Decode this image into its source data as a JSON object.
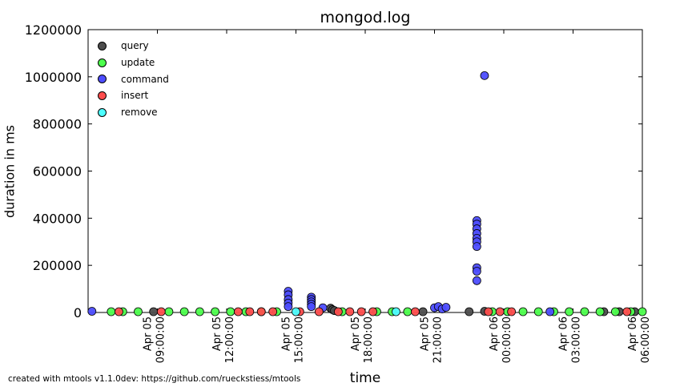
{
  "chart_data": {
    "type": "scatter",
    "title": "mongod.log",
    "xlabel": "time",
    "ylabel": "duration in ms",
    "footer": "created with mtools v1.1.0dev: https://github.com/rueckstiess/mtools",
    "ylim": [
      0,
      1200000
    ],
    "xlim": [
      "Apr 05 06:00",
      "Apr 06 06:00"
    ],
    "y_ticks": [
      "0",
      "200000",
      "400000",
      "600000",
      "800000",
      "1000000",
      "1200000"
    ],
    "x_ticks": [
      {
        "at": "Apr 05 09:00",
        "line1": "Apr 05",
        "line2": "09:00:00"
      },
      {
        "at": "Apr 05 12:00",
        "line1": "Apr 05",
        "line2": "12:00:00"
      },
      {
        "at": "Apr 05 15:00",
        "line1": "Apr 05",
        "line2": "15:00:00"
      },
      {
        "at": "Apr 05 18:00",
        "line1": "Apr 05",
        "line2": "18:00:00"
      },
      {
        "at": "Apr 05 21:00",
        "line1": "Apr 05",
        "line2": "21:00:00"
      },
      {
        "at": "Apr 06 00:00",
        "line1": "Apr 06",
        "line2": "00:00:00"
      },
      {
        "at": "Apr 06 03:00",
        "line1": "Apr 06",
        "line2": "03:00:00"
      },
      {
        "at": "Apr 06 06:00",
        "line1": "Apr 06",
        "line2": "06:00:00"
      }
    ],
    "grid": false,
    "legend_position": "top-left",
    "series": [
      {
        "name": "query",
        "color": "#4d4d4d",
        "x": [
          "Apr 05 08:50",
          "Apr 05 16:30",
          "Apr 05 16:35",
          "Apr 05 16:40",
          "Apr 05 20:30",
          "Apr 05 22:30",
          "Apr 05 23:10",
          "Apr 06 04:20",
          "Apr 06 05:00",
          "Apr 06 05:40"
        ],
        "y": [
          2000,
          18000,
          12000,
          8000,
          3000,
          3000,
          5000,
          3000,
          3000,
          3000
        ]
      },
      {
        "name": "update",
        "color": "#4dff4d",
        "x": [
          "Apr 05 07:00",
          "Apr 05 07:30",
          "Apr 05 08:10",
          "Apr 05 09:30",
          "Apr 05 10:10",
          "Apr 05 10:50",
          "Apr 05 11:30",
          "Apr 05 12:10",
          "Apr 05 12:50",
          "Apr 05 13:30",
          "Apr 05 14:10",
          "Apr 05 17:00",
          "Apr 05 18:30",
          "Apr 05 19:10",
          "Apr 05 19:50",
          "Apr 05 23:30",
          "Apr 06 00:10",
          "Apr 06 00:50",
          "Apr 06 01:30",
          "Apr 06 02:10",
          "Apr 06 02:50",
          "Apr 06 03:30",
          "Apr 06 04:10",
          "Apr 06 04:50",
          "Apr 06 05:30",
          "Apr 06 06:00"
        ],
        "y": [
          3000,
          2000,
          2000,
          3000,
          2000,
          2000,
          3000,
          2000,
          2000,
          2000,
          2000,
          3000,
          2000,
          2000,
          2000,
          3000,
          3000,
          2000,
          3000,
          2000,
          3000,
          2000,
          3000,
          2000,
          3000,
          2000
        ]
      },
      {
        "name": "command",
        "color": "#4d4dff",
        "x": [
          "Apr 05 06:10",
          "Apr 05 14:40",
          "Apr 05 14:40",
          "Apr 05 14:40",
          "Apr 05 14:40",
          "Apr 05 14:40",
          "Apr 05 15:40",
          "Apr 05 15:40",
          "Apr 05 15:40",
          "Apr 05 15:40",
          "Apr 05 15:40",
          "Apr 05 16:10",
          "Apr 05 21:00",
          "Apr 05 21:10",
          "Apr 05 21:20",
          "Apr 05 21:30",
          "Apr 05 22:50",
          "Apr 05 22:50",
          "Apr 05 22:50",
          "Apr 05 22:50",
          "Apr 05 22:50",
          "Apr 05 22:50",
          "Apr 05 22:50",
          "Apr 05 22:50",
          "Apr 05 22:50",
          "Apr 05 22:50",
          "Apr 05 23:10",
          "Apr 06 02:00"
        ],
        "y": [
          5000,
          90000,
          75000,
          55000,
          40000,
          25000,
          65000,
          55000,
          45000,
          35000,
          25000,
          20000,
          20000,
          25000,
          15000,
          22000,
          390000,
          375000,
          355000,
          335000,
          315000,
          300000,
          280000,
          190000,
          175000,
          135000,
          1005000,
          3000
        ]
      },
      {
        "name": "insert",
        "color": "#ff4d4d",
        "x": [
          "Apr 05 07:20",
          "Apr 05 09:10",
          "Apr 05 12:30",
          "Apr 05 13:00",
          "Apr 05 13:30",
          "Apr 05 14:00",
          "Apr 05 15:10",
          "Apr 05 16:00",
          "Apr 05 16:50",
          "Apr 05 17:20",
          "Apr 05 17:50",
          "Apr 05 18:20",
          "Apr 05 20:10",
          "Apr 05 23:20",
          "Apr 05 23:50",
          "Apr 06 00:20",
          "Apr 06 05:20"
        ],
        "y": [
          3000,
          3000,
          3000,
          3000,
          3000,
          3000,
          3000,
          3000,
          3000,
          3000,
          3000,
          3000,
          3000,
          3000,
          3000,
          3000,
          3000
        ]
      },
      {
        "name": "remove",
        "color": "#4dffff",
        "x": [
          "Apr 05 15:00",
          "Apr 05 19:20"
        ],
        "y": [
          2000,
          2000
        ]
      }
    ]
  }
}
